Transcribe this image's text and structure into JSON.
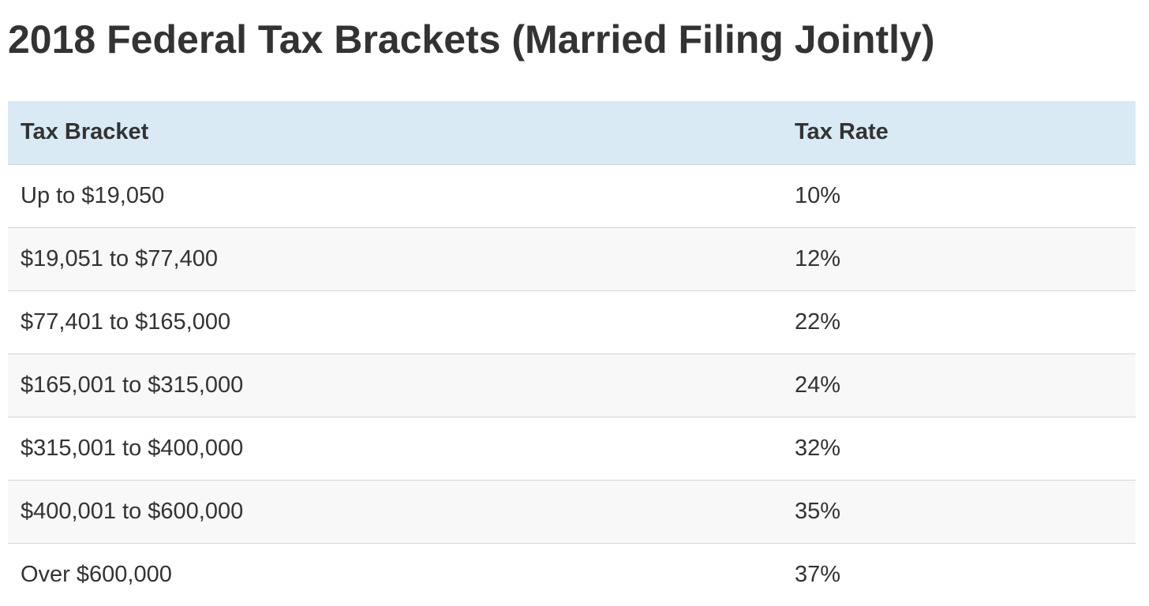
{
  "page": {
    "title": "2018 Federal Tax Brackets (Married Filing Jointly)"
  },
  "table": {
    "headers": [
      "Tax Bracket",
      "Tax Rate"
    ],
    "rows": [
      {
        "bracket": "Up to $19,050",
        "rate": "10%"
      },
      {
        "bracket": "$19,051 to $77,400",
        "rate": "12%"
      },
      {
        "bracket": "$77,401 to $165,000",
        "rate": "22%"
      },
      {
        "bracket": "$165,001 to $315,000",
        "rate": "24%"
      },
      {
        "bracket": "$315,001 to $400,000",
        "rate": "32%"
      },
      {
        "bracket": "$400,001 to $600,000",
        "rate": "35%"
      },
      {
        "bracket": "Over $600,000",
        "rate": "37%"
      }
    ]
  },
  "colors": {
    "header_background": "#d9eaf5",
    "stripe_background": "#f8f8f8",
    "text": "#333333",
    "row_divider": "#d4d4d4"
  }
}
